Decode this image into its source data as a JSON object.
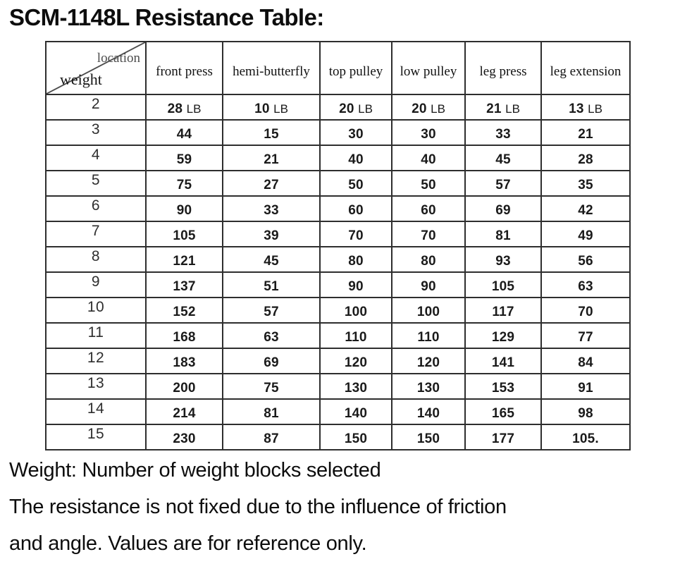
{
  "title": "SCM-1148L Resistance Table:",
  "table": {
    "corner_top_label": "location",
    "corner_bottom_label": "weight",
    "columns": [
      "front press",
      "hemi-butterfly",
      "top pulley",
      "low pulley",
      "leg press",
      "leg extension"
    ],
    "rows": [
      {
        "weight": "2",
        "unit": "LB",
        "values": [
          "28",
          "10",
          "20",
          "20",
          "21",
          "13"
        ]
      },
      {
        "weight": "3",
        "values": [
          "44",
          "15",
          "30",
          "30",
          "33",
          "21"
        ]
      },
      {
        "weight": "4",
        "values": [
          "59",
          "21",
          "40",
          "40",
          "45",
          "28"
        ]
      },
      {
        "weight": "5",
        "values": [
          "75",
          "27",
          "50",
          "50",
          "57",
          "35"
        ]
      },
      {
        "weight": "6",
        "values": [
          "90",
          "33",
          "60",
          "60",
          "69",
          "42"
        ]
      },
      {
        "weight": "7",
        "values": [
          "105",
          "39",
          "70",
          "70",
          "81",
          "49"
        ]
      },
      {
        "weight": "8",
        "values": [
          "121",
          "45",
          "80",
          "80",
          "93",
          "56"
        ]
      },
      {
        "weight": "9",
        "values": [
          "137",
          "51",
          "90",
          "90",
          "105",
          "63"
        ]
      },
      {
        "weight": "10",
        "values": [
          "152",
          "57",
          "100",
          "100",
          "117",
          "70"
        ]
      },
      {
        "weight": "11",
        "values": [
          "168",
          "63",
          "110",
          "110",
          "129",
          "77"
        ]
      },
      {
        "weight": "12",
        "values": [
          "183",
          "69",
          "120",
          "120",
          "141",
          "84"
        ]
      },
      {
        "weight": "13",
        "values": [
          "200",
          "75",
          "130",
          "130",
          "153",
          "91"
        ]
      },
      {
        "weight": "14",
        "values": [
          "214",
          "81",
          "140",
          "140",
          "165",
          "98"
        ]
      },
      {
        "weight": "15",
        "values": [
          "230",
          "87",
          "150",
          "150",
          "177",
          "105."
        ]
      }
    ]
  },
  "notes": {
    "line1": "Weight: Number of weight blocks selected",
    "line2": "The resistance is not fixed due to the influence of friction",
    "line3": "and angle. Values are for reference only."
  },
  "colors": {
    "border": "#2e2e2e",
    "text": "#1a1a1a",
    "corner_top_label": "#4d4d4d",
    "background": "#ffffff"
  }
}
